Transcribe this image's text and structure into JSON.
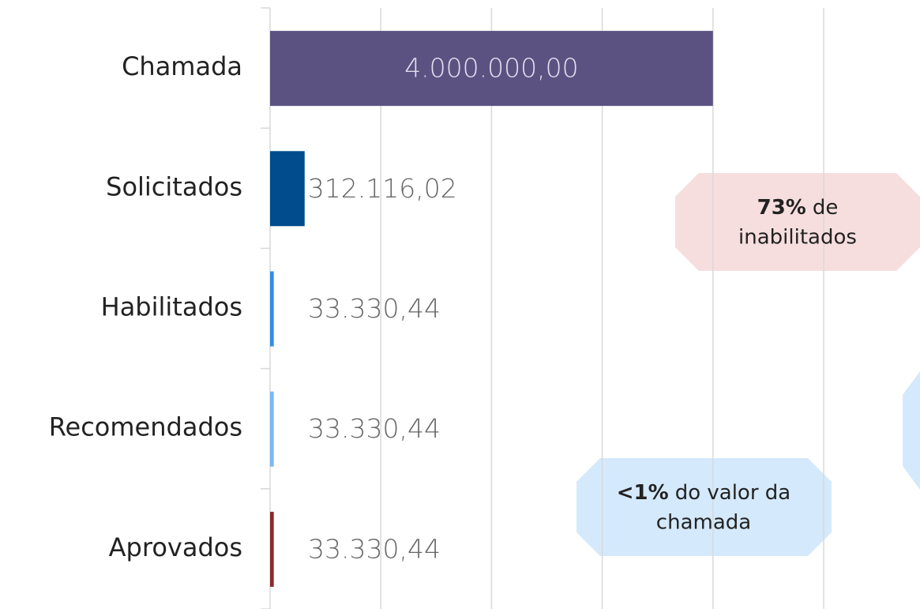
{
  "chart_data": {
    "type": "bar",
    "orientation": "horizontal",
    "categories": [
      "Chamada",
      "Solicitados",
      "Habilitados",
      "Recomendados",
      "Aprovados"
    ],
    "values": [
      4000000,
      312116.02,
      33330.44,
      33330.44,
      33330.44
    ],
    "value_labels": [
      "4.000.000,00",
      "312.116,02",
      "33.330,44",
      "33.330,44",
      "33.330,44"
    ],
    "colors": [
      "#5c5282",
      "#004c8c",
      "#2f8fe0",
      "#7ab8f0",
      "#8b2a2a"
    ],
    "xlim": [
      0,
      5870000
    ],
    "xticks": [
      0,
      1000000,
      2000000,
      3000000,
      4000000,
      5000000
    ],
    "grid": true,
    "annotations": [
      {
        "bold": "73%",
        "lines": [
          "de",
          "inabilitados"
        ]
      },
      {
        "bold": "<1%",
        "lines": [
          "do valor da",
          "chamada"
        ]
      }
    ]
  }
}
